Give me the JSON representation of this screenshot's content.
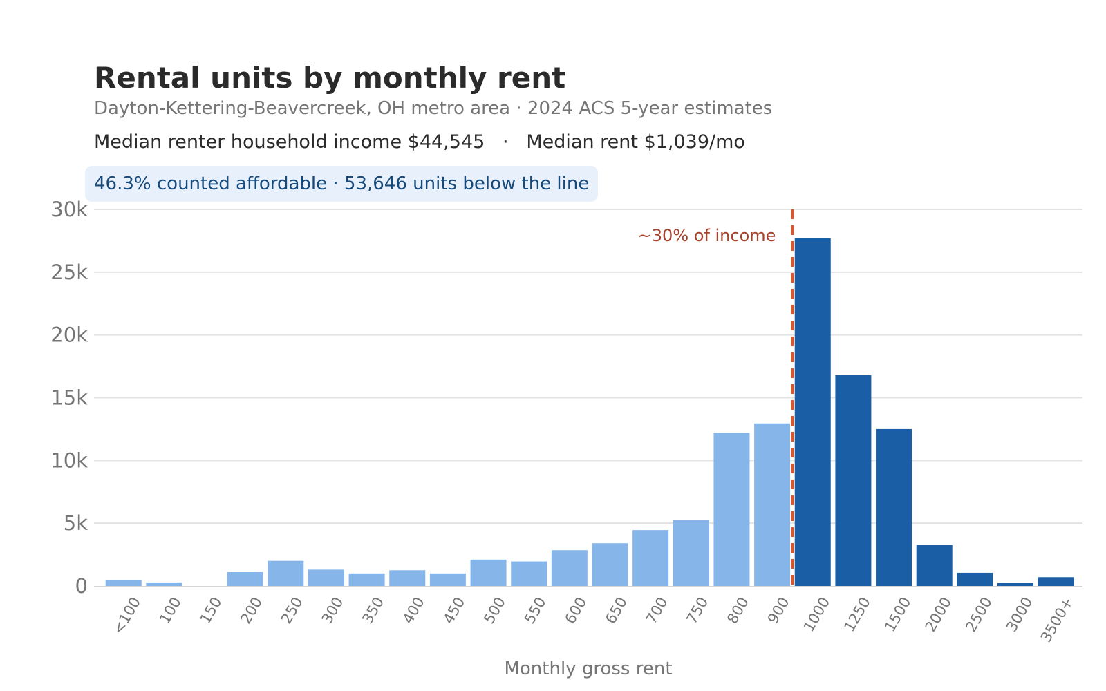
{
  "header": {
    "title": "Rental units by monthly rent",
    "subtitle": "Dayton-Kettering-Beavercreek, OH metro area  ·  2024 ACS 5-year estimates",
    "income_line": "Median renter household income $44,545   ·   Median rent $1,039/mo",
    "badge": "46.3% counted affordable  ·  53,646 units below the line"
  },
  "colors": {
    "affordable": "#85b5e9",
    "unaffordable": "#1a5fa6",
    "threshold": "#d9572e",
    "annotation": "#a8412a",
    "grid": "#e3e3e3",
    "axis_text": "#757575"
  },
  "chart_data": {
    "type": "bar",
    "categories": [
      "<100",
      "100",
      "150",
      "200",
      "250",
      "300",
      "350",
      "400",
      "450",
      "500",
      "550",
      "600",
      "650",
      "700",
      "750",
      "800",
      "900",
      "1000",
      "1250",
      "1500",
      "2000",
      "2500",
      "3000",
      "3500+"
    ],
    "values": [
      450,
      280,
      0,
      1100,
      2000,
      1300,
      1000,
      1250,
      1000,
      2100,
      1950,
      2850,
      3400,
      4450,
      5250,
      12200,
      12950,
      27700,
      16800,
      12500,
      3300,
      1050,
      250,
      700
    ],
    "affordable_count": 17,
    "xlabel": "Monthly gross rent",
    "ylabel": "",
    "ylim": [
      0,
      30000
    ],
    "yticks": [
      0,
      5000,
      10000,
      15000,
      20000,
      25000,
      30000
    ],
    "ytick_labels": [
      "0",
      "5k",
      "10k",
      "15k",
      "20k",
      "25k",
      "30k"
    ],
    "threshold_label": "~30% of income",
    "grid": true,
    "legend": "none"
  }
}
